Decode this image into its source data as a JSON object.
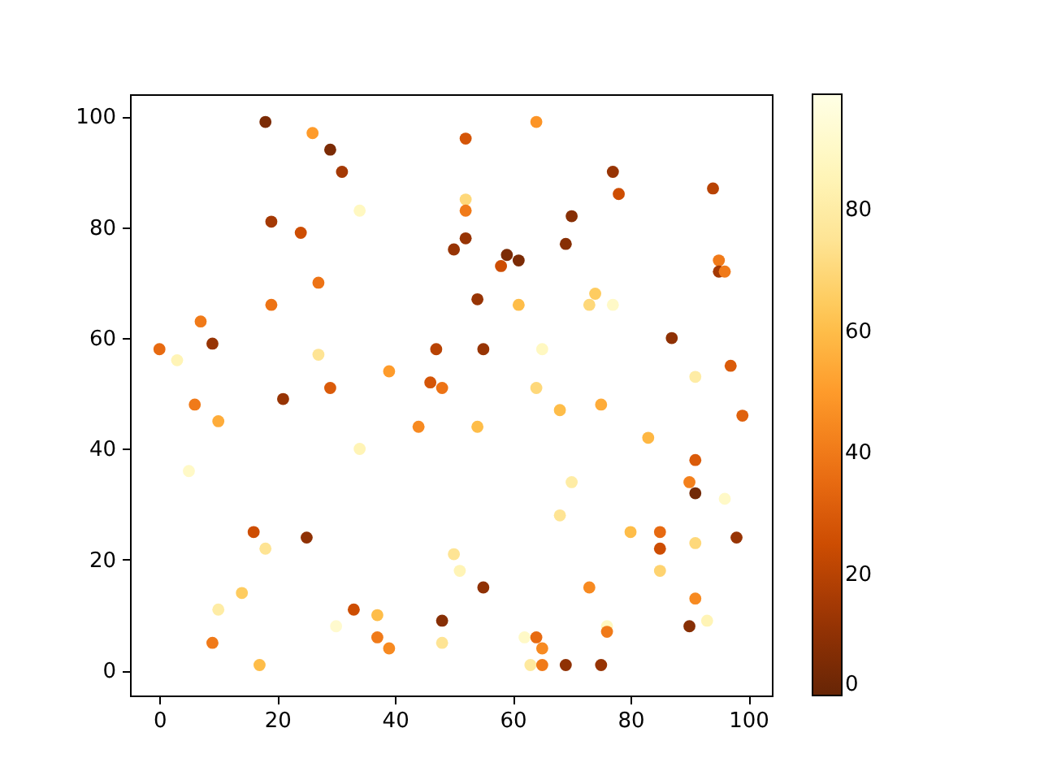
{
  "chart_data": {
    "type": "scatter",
    "x": [
      0,
      3,
      5,
      6,
      7,
      9,
      9,
      10,
      10,
      14,
      16,
      17,
      18,
      18,
      19,
      19,
      21,
      24,
      25,
      26,
      27,
      27,
      29,
      29,
      30,
      31,
      33,
      34,
      34,
      37,
      37,
      39,
      39,
      44,
      46,
      47,
      48,
      48,
      48,
      50,
      50,
      51,
      52,
      52,
      52,
      52,
      54,
      54,
      55,
      55,
      58,
      59,
      61,
      61,
      62,
      63,
      64,
      64,
      64,
      65,
      65,
      65,
      68,
      68,
      69,
      69,
      70,
      70,
      73,
      73,
      74,
      75,
      75,
      76,
      76,
      77,
      77,
      78,
      80,
      83,
      85,
      85,
      85,
      87,
      90,
      90,
      91,
      91,
      91,
      91,
      91,
      93,
      94,
      95,
      95,
      96,
      96,
      97,
      98,
      99
    ],
    "values": [
      58,
      56,
      36,
      48,
      63,
      59,
      5,
      45,
      11,
      14,
      25,
      1,
      22,
      99,
      81,
      66,
      49,
      79,
      24,
      97,
      70,
      57,
      94,
      51,
      8,
      90,
      11,
      83,
      40,
      10,
      6,
      54,
      4,
      44,
      52,
      58,
      51,
      9,
      5,
      76,
      21,
      18,
      96,
      85,
      83,
      78,
      67,
      44,
      58,
      15,
      73,
      75,
      74,
      66,
      6,
      1,
      99,
      51,
      6,
      58,
      4,
      1,
      47,
      28,
      77,
      1,
      82,
      34,
      66,
      15,
      68,
      48,
      1,
      8,
      7,
      90,
      66,
      86,
      25,
      42,
      25,
      22,
      18,
      60,
      34,
      8,
      38,
      32,
      53,
      23,
      13,
      9,
      87,
      74,
      72,
      72,
      31,
      55,
      24,
      46
    ],
    "cvalues": [
      35,
      85,
      90,
      40,
      40,
      12,
      40,
      55,
      80,
      65,
      25,
      60,
      75,
      5,
      15,
      38,
      12,
      25,
      10,
      50,
      38,
      75,
      5,
      30,
      92,
      15,
      25,
      88,
      85,
      60,
      40,
      50,
      45,
      45,
      28,
      20,
      38,
      8,
      75,
      12,
      75,
      85,
      28,
      70,
      40,
      12,
      12,
      60,
      12,
      10,
      25,
      5,
      5,
      60,
      90,
      78,
      48,
      70,
      35,
      88,
      45,
      40,
      60,
      75,
      8,
      10,
      8,
      80,
      70,
      45,
      65,
      55,
      12,
      88,
      40,
      12,
      90,
      25,
      60,
      58,
      35,
      25,
      68,
      10,
      42,
      8,
      30,
      3,
      80,
      70,
      45,
      85,
      20,
      40,
      15,
      40,
      90,
      30,
      12,
      32
    ],
    "xlim": [
      -5,
      104
    ],
    "ylim": [
      -4.5,
      104
    ],
    "xticks": [
      0,
      20,
      40,
      60,
      80,
      100
    ],
    "yticks": [
      0,
      20,
      40,
      60,
      80,
      100
    ],
    "clim": [
      0,
      99
    ],
    "cticks": [
      0,
      20,
      40,
      60,
      80
    ],
    "grid": false,
    "marker": "circle"
  }
}
